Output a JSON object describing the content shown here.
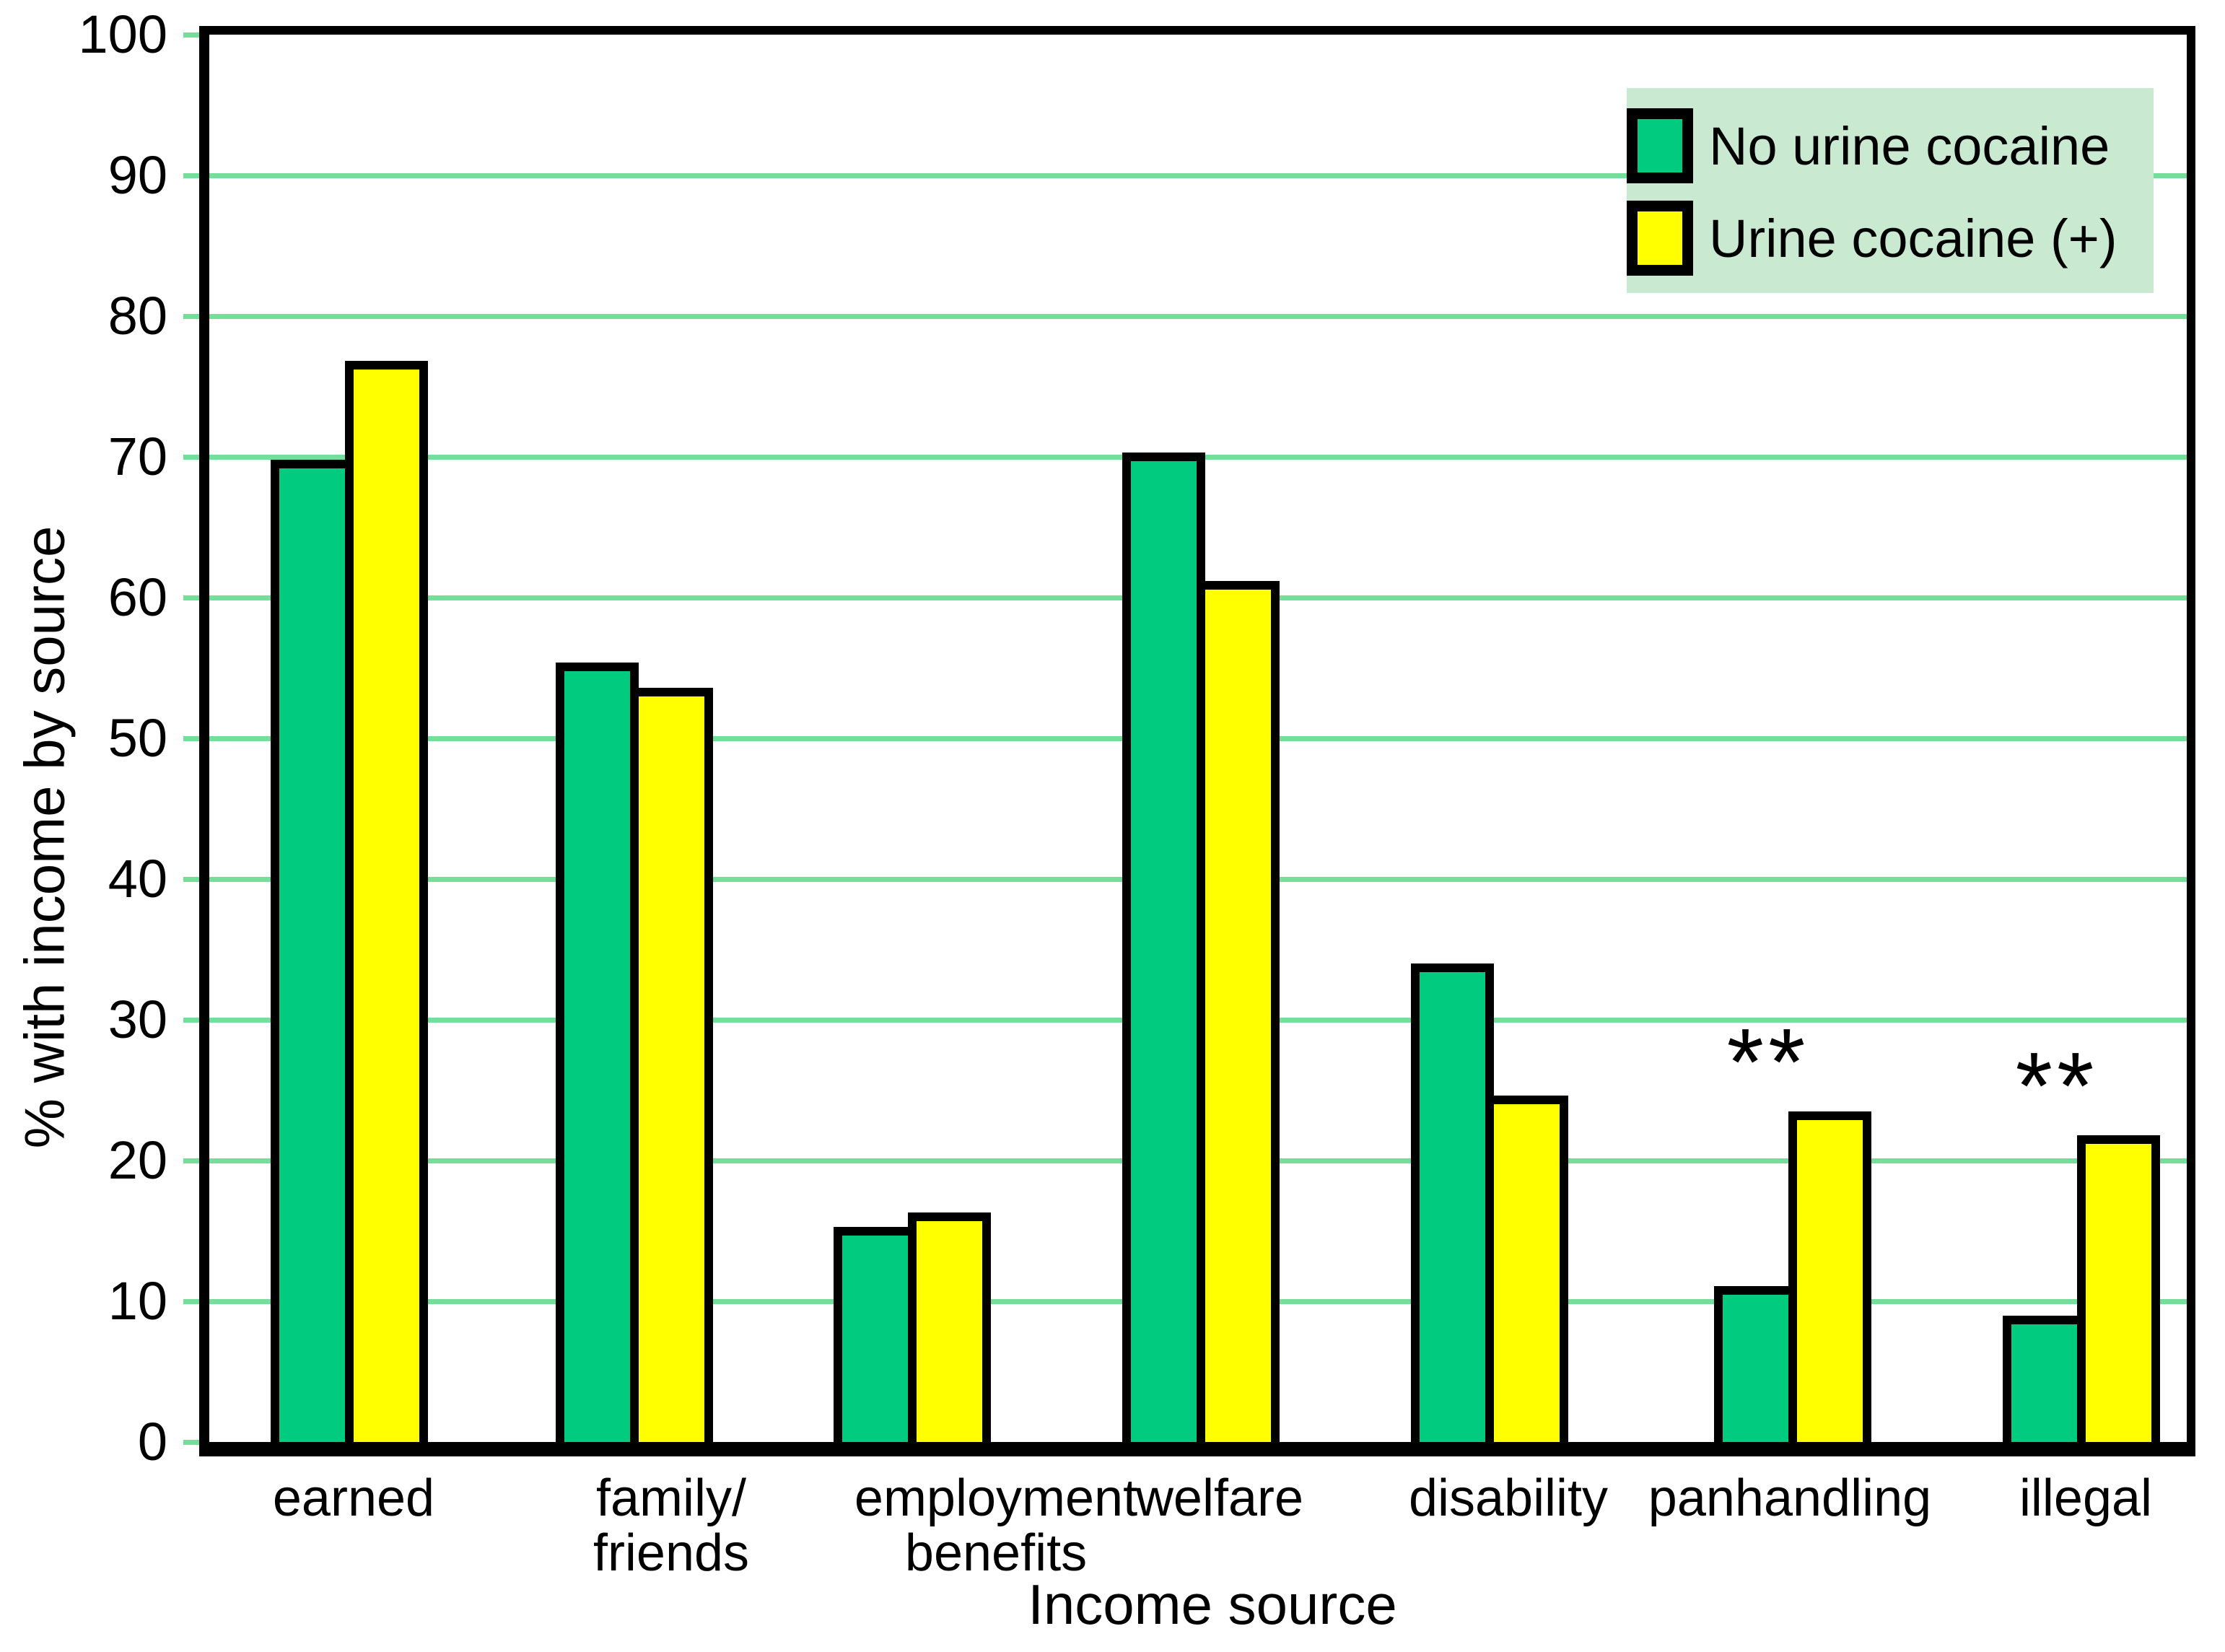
{
  "chart_data": {
    "type": "bar",
    "title": "",
    "xlabel": "Income source",
    "ylabel": "% with income by source",
    "ylim": [
      0,
      100
    ],
    "yticks": [
      0,
      10,
      20,
      30,
      40,
      50,
      60,
      70,
      80,
      90,
      100
    ],
    "grid": "horizontal light green lines every 10 units",
    "legend_position": "top-right inside plot, light green background",
    "categories": [
      "earned",
      "family/\nfriends",
      "employment\nbenefits",
      "welfare",
      "disability",
      "panhandling",
      "illegal"
    ],
    "series": [
      {
        "name": "No urine cocaine",
        "color": "#00CB7E",
        "values": [
          69.8,
          55.4,
          15.3,
          70.3,
          34.0,
          11.1,
          9.0
        ]
      },
      {
        "name": "Urine cocaine (+)",
        "color": "#FFFF00",
        "values": [
          76.8,
          53.6,
          16.3,
          61.2,
          24.6,
          23.5,
          21.8
        ]
      }
    ],
    "annotations": [
      {
        "category": "panhandling",
        "text": "**",
        "meaning": "significance marker above bars"
      },
      {
        "category": "illegal",
        "text": "**",
        "meaning": "significance marker above bars"
      }
    ],
    "colors": {
      "gridline": "#74DF9B",
      "tick_mark": "#74DF9B",
      "legend_background": "#C9EAD1",
      "bar_border": "#000000",
      "frame": "#000000",
      "background": "#FFFFFF"
    }
  }
}
